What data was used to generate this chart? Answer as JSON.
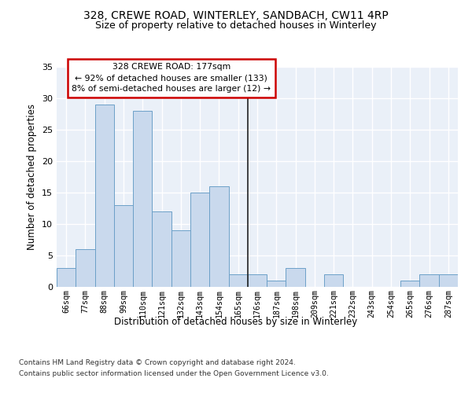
{
  "title1": "328, CREWE ROAD, WINTERLEY, SANDBACH, CW11 4RP",
  "title2": "Size of property relative to detached houses in Winterley",
  "xlabel": "Distribution of detached houses by size in Winterley",
  "ylabel": "Number of detached properties",
  "categories": [
    "66sqm",
    "77sqm",
    "88sqm",
    "99sqm",
    "110sqm",
    "121sqm",
    "132sqm",
    "143sqm",
    "154sqm",
    "165sqm",
    "176sqm",
    "187sqm",
    "198sqm",
    "209sqm",
    "221sqm",
    "232sqm",
    "243sqm",
    "254sqm",
    "265sqm",
    "276sqm",
    "287sqm"
  ],
  "values": [
    3,
    6,
    29,
    13,
    28,
    12,
    9,
    15,
    16,
    2,
    2,
    1,
    3,
    0,
    2,
    0,
    0,
    0,
    1,
    2,
    2
  ],
  "bar_color": "#c9d9ed",
  "bar_edge_color": "#6ca0c8",
  "annotation_line1": "328 CREWE ROAD: 177sqm",
  "annotation_line2": "← 92% of detached houses are smaller (133)",
  "annotation_line3": "8% of semi-detached houses are larger (12) →",
  "annotation_box_color": "#ffffff",
  "annotation_box_edge": "#cc0000",
  "ylim": [
    0,
    35
  ],
  "yticks": [
    0,
    5,
    10,
    15,
    20,
    25,
    30,
    35
  ],
  "background_color": "#eaf0f8",
  "grid_color": "#ffffff",
  "vline_idx": 10,
  "footer1": "Contains HM Land Registry data © Crown copyright and database right 2024.",
  "footer2": "Contains public sector information licensed under the Open Government Licence v3.0."
}
